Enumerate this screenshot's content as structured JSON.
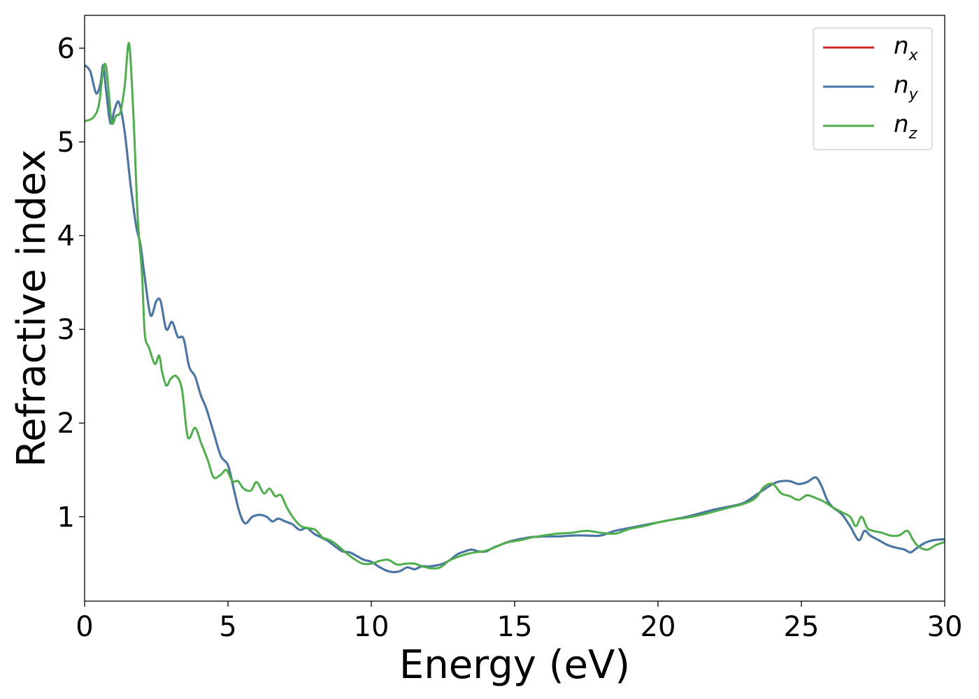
{
  "chart_data": {
    "type": "line",
    "title": "",
    "xlabel": "Energy (eV)",
    "ylabel": "Refractive index",
    "xlim": [
      0,
      30
    ],
    "ylim": [
      0.1,
      6.35
    ],
    "xticks": [
      0,
      5,
      10,
      15,
      20,
      25,
      30
    ],
    "yticks": [
      1,
      2,
      3,
      4,
      5,
      6
    ],
    "grid": false,
    "legend_position": "top-right",
    "series": [
      {
        "name": "n",
        "subscript": "x",
        "color": "#d62728",
        "x": [
          0,
          0.2,
          0.4,
          0.55,
          0.65,
          0.75,
          0.9,
          1.05,
          1.2,
          1.4,
          1.6,
          1.8,
          1.95,
          2.1,
          2.3,
          2.5,
          2.65,
          2.85,
          3.05,
          3.25,
          3.45,
          3.65,
          3.85,
          4.05,
          4.25,
          4.5,
          4.75,
          5.0,
          5.2,
          5.4,
          5.6,
          5.85,
          6.1,
          6.35,
          6.55,
          6.75,
          7.0,
          7.25,
          7.5,
          7.75,
          8.0,
          8.25,
          8.5,
          8.75,
          9.0,
          9.25,
          9.5,
          9.75,
          10.0,
          10.25,
          10.5,
          10.75,
          11.0,
          11.25,
          11.5,
          11.75,
          12.0,
          12.25,
          12.5,
          12.75,
          13.0,
          13.25,
          13.5,
          13.75,
          14.0,
          14.25,
          14.5,
          14.75,
          15.0,
          15.5,
          16.0,
          16.5,
          17.0,
          17.5,
          18.0,
          18.5,
          19.0,
          19.5,
          20.0,
          20.5,
          21.0,
          21.5,
          22.0,
          22.5,
          23.0,
          23.5,
          24.0,
          24.3,
          24.6,
          24.9,
          25.2,
          25.5,
          25.7,
          25.9,
          26.1,
          26.4,
          26.7,
          27.0,
          27.2,
          27.4,
          27.7,
          28.0,
          28.3,
          28.6,
          28.8,
          29.0,
          29.3,
          29.6,
          30.0
        ],
        "y": [
          5.82,
          5.75,
          5.52,
          5.62,
          5.82,
          5.55,
          5.2,
          5.35,
          5.42,
          5.1,
          4.55,
          4.1,
          3.9,
          3.55,
          3.15,
          3.3,
          3.3,
          3.0,
          3.08,
          2.92,
          2.9,
          2.6,
          2.5,
          2.3,
          2.15,
          1.9,
          1.65,
          1.55,
          1.3,
          1.05,
          0.93,
          1.0,
          1.02,
          1.0,
          0.95,
          0.98,
          0.95,
          0.92,
          0.86,
          0.88,
          0.82,
          0.78,
          0.74,
          0.68,
          0.63,
          0.62,
          0.58,
          0.54,
          0.52,
          0.47,
          0.43,
          0.41,
          0.42,
          0.46,
          0.44,
          0.47,
          0.47,
          0.48,
          0.5,
          0.54,
          0.6,
          0.63,
          0.65,
          0.63,
          0.63,
          0.67,
          0.7,
          0.73,
          0.75,
          0.78,
          0.79,
          0.79,
          0.8,
          0.8,
          0.8,
          0.85,
          0.88,
          0.91,
          0.94,
          0.97,
          1.0,
          1.04,
          1.08,
          1.11,
          1.15,
          1.25,
          1.35,
          1.38,
          1.38,
          1.35,
          1.37,
          1.42,
          1.33,
          1.18,
          1.1,
          1.03,
          0.9,
          0.75,
          0.85,
          0.8,
          0.75,
          0.7,
          0.67,
          0.65,
          0.62,
          0.66,
          0.72,
          0.75,
          0.76
        ]
      },
      {
        "name": "n",
        "subscript": "y",
        "color": "#4477aa",
        "x": [
          0,
          0.2,
          0.4,
          0.55,
          0.65,
          0.75,
          0.9,
          1.05,
          1.2,
          1.4,
          1.6,
          1.8,
          1.95,
          2.1,
          2.3,
          2.5,
          2.65,
          2.85,
          3.05,
          3.25,
          3.45,
          3.65,
          3.85,
          4.05,
          4.25,
          4.5,
          4.75,
          5.0,
          5.2,
          5.4,
          5.6,
          5.85,
          6.1,
          6.35,
          6.55,
          6.75,
          7.0,
          7.25,
          7.5,
          7.75,
          8.0,
          8.25,
          8.5,
          8.75,
          9.0,
          9.25,
          9.5,
          9.75,
          10.0,
          10.25,
          10.5,
          10.75,
          11.0,
          11.25,
          11.5,
          11.75,
          12.0,
          12.25,
          12.5,
          12.75,
          13.0,
          13.25,
          13.5,
          13.75,
          14.0,
          14.25,
          14.5,
          14.75,
          15.0,
          15.5,
          16.0,
          16.5,
          17.0,
          17.5,
          18.0,
          18.5,
          19.0,
          19.5,
          20.0,
          20.5,
          21.0,
          21.5,
          22.0,
          22.5,
          23.0,
          23.5,
          24.0,
          24.3,
          24.6,
          24.9,
          25.2,
          25.5,
          25.7,
          25.9,
          26.1,
          26.4,
          26.7,
          27.0,
          27.2,
          27.4,
          27.7,
          28.0,
          28.3,
          28.6,
          28.8,
          29.0,
          29.3,
          29.6,
          30.0
        ],
        "y": [
          5.82,
          5.75,
          5.52,
          5.62,
          5.82,
          5.55,
          5.2,
          5.35,
          5.42,
          5.1,
          4.55,
          4.1,
          3.9,
          3.55,
          3.15,
          3.3,
          3.3,
          3.0,
          3.08,
          2.92,
          2.9,
          2.6,
          2.5,
          2.3,
          2.15,
          1.9,
          1.65,
          1.55,
          1.3,
          1.05,
          0.93,
          1.0,
          1.02,
          1.0,
          0.95,
          0.98,
          0.95,
          0.92,
          0.86,
          0.88,
          0.82,
          0.78,
          0.74,
          0.68,
          0.63,
          0.62,
          0.58,
          0.54,
          0.52,
          0.47,
          0.43,
          0.41,
          0.42,
          0.46,
          0.44,
          0.47,
          0.47,
          0.48,
          0.5,
          0.54,
          0.6,
          0.63,
          0.65,
          0.63,
          0.63,
          0.67,
          0.7,
          0.73,
          0.75,
          0.78,
          0.79,
          0.79,
          0.8,
          0.8,
          0.8,
          0.85,
          0.88,
          0.91,
          0.94,
          0.97,
          1.0,
          1.04,
          1.08,
          1.11,
          1.15,
          1.25,
          1.35,
          1.38,
          1.38,
          1.35,
          1.37,
          1.42,
          1.33,
          1.18,
          1.1,
          1.03,
          0.9,
          0.75,
          0.85,
          0.8,
          0.75,
          0.7,
          0.67,
          0.65,
          0.62,
          0.66,
          0.72,
          0.75,
          0.76
        ]
      },
      {
        "name": "n",
        "subscript": "z",
        "color": "#4daf4a",
        "x": [
          0,
          0.3,
          0.5,
          0.65,
          0.75,
          0.85,
          0.95,
          1.1,
          1.25,
          1.4,
          1.55,
          1.7,
          1.85,
          2.0,
          2.1,
          2.25,
          2.45,
          2.6,
          2.7,
          2.85,
          3.0,
          3.2,
          3.4,
          3.6,
          3.85,
          4.05,
          4.3,
          4.5,
          4.75,
          4.95,
          5.15,
          5.35,
          5.55,
          5.8,
          6.0,
          6.25,
          6.45,
          6.65,
          6.85,
          7.05,
          7.3,
          7.55,
          7.8,
          8.05,
          8.3,
          8.55,
          8.8,
          9.1,
          9.4,
          9.7,
          10.0,
          10.3,
          10.6,
          10.9,
          11.2,
          11.5,
          11.8,
          12.1,
          12.4,
          12.7,
          13.0,
          13.3,
          13.6,
          13.9,
          14.2,
          14.5,
          14.8,
          15.2,
          15.6,
          16.0,
          16.5,
          17.0,
          17.5,
          18.0,
          18.5,
          19.0,
          19.5,
          20.0,
          20.5,
          21.0,
          21.5,
          22.0,
          22.5,
          23.0,
          23.4,
          23.7,
          24.0,
          24.3,
          24.6,
          24.9,
          25.2,
          25.5,
          25.8,
          26.1,
          26.4,
          26.7,
          26.9,
          27.1,
          27.3,
          27.5,
          27.8,
          28.1,
          28.4,
          28.7,
          28.9,
          29.1,
          29.4,
          29.7,
          30.0
        ],
        "y": [
          5.22,
          5.26,
          5.4,
          5.78,
          5.8,
          5.5,
          5.2,
          5.28,
          5.32,
          5.6,
          6.05,
          5.3,
          4.2,
          3.6,
          2.95,
          2.8,
          2.63,
          2.72,
          2.55,
          2.4,
          2.47,
          2.5,
          2.35,
          1.85,
          1.95,
          1.8,
          1.6,
          1.42,
          1.45,
          1.5,
          1.38,
          1.38,
          1.3,
          1.28,
          1.37,
          1.25,
          1.3,
          1.22,
          1.23,
          1.1,
          0.98,
          0.9,
          0.88,
          0.86,
          0.78,
          0.75,
          0.7,
          0.62,
          0.55,
          0.5,
          0.5,
          0.53,
          0.54,
          0.49,
          0.5,
          0.5,
          0.47,
          0.45,
          0.46,
          0.53,
          0.57,
          0.6,
          0.62,
          0.63,
          0.66,
          0.7,
          0.73,
          0.75,
          0.78,
          0.8,
          0.82,
          0.83,
          0.85,
          0.83,
          0.82,
          0.87,
          0.9,
          0.94,
          0.97,
          0.99,
          1.02,
          1.06,
          1.1,
          1.14,
          1.2,
          1.32,
          1.35,
          1.25,
          1.22,
          1.18,
          1.23,
          1.2,
          1.16,
          1.1,
          1.05,
          1.0,
          0.9,
          1.0,
          0.88,
          0.85,
          0.83,
          0.8,
          0.8,
          0.85,
          0.75,
          0.68,
          0.65,
          0.7,
          0.73
        ]
      }
    ]
  }
}
